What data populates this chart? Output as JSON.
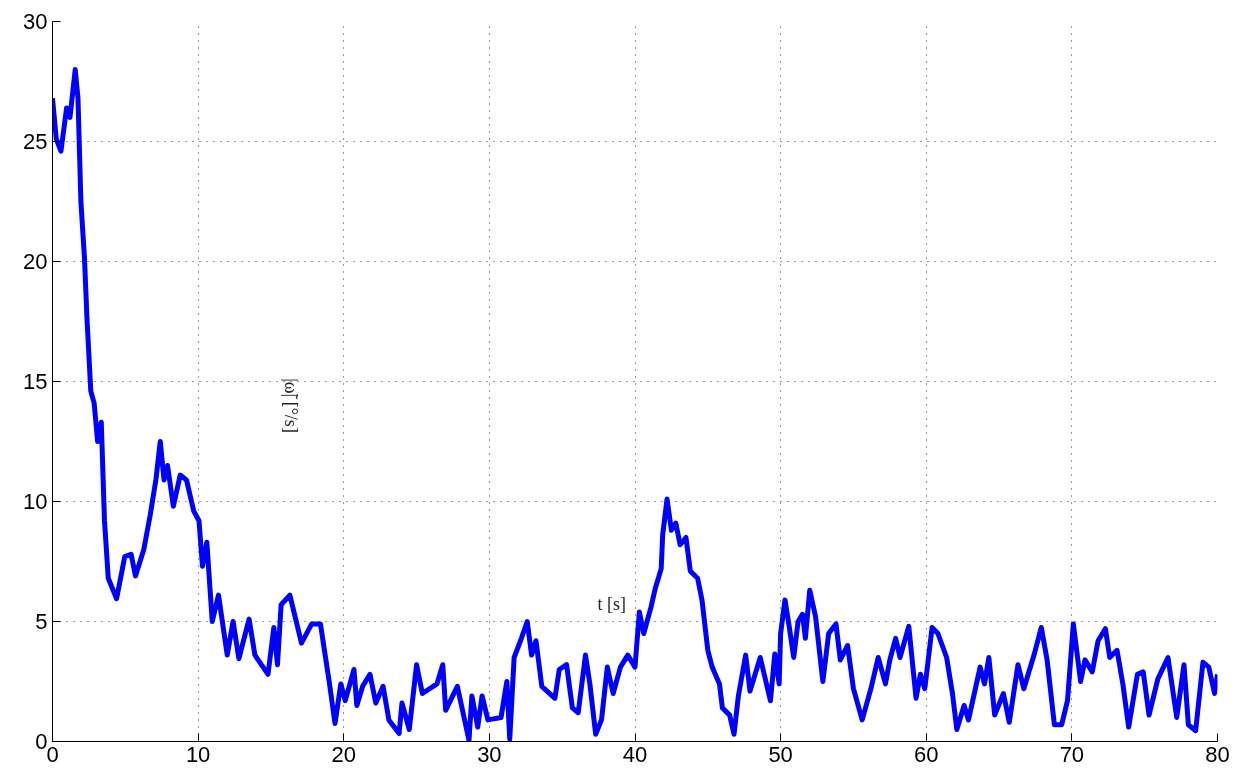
{
  "chart_data": {
    "type": "line",
    "xlabel": "t [s]",
    "ylabel": "|ω̃| [°/s]",
    "x": [
      0,
      0.26,
      0.58,
      0.97,
      1.2,
      1.56,
      1.75,
      1.95,
      2.2,
      2.37,
      2.63,
      2.86,
      3.1,
      3.35,
      3.57,
      3.83,
      4.4,
      4.96,
      5.4,
      5.7,
      6.27,
      6.7,
      7.1,
      7.4,
      7.66,
      7.9,
      8.3,
      8.77,
      9.2,
      9.7,
      10.06,
      10.3,
      10.6,
      10.97,
      11.4,
      12.0,
      12.4,
      12.8,
      13.5,
      13.9,
      14.8,
      15.2,
      15.45,
      15.7,
      16.3,
      17.1,
      17.8,
      18.4,
      18.8,
      19.0,
      19.4,
      19.8,
      20.1,
      20.7,
      20.9,
      21.3,
      21.8,
      22.2,
      22.7,
      23.1,
      23.8,
      24.0,
      24.5,
      25.0,
      25.4,
      26.4,
      26.8,
      27.0,
      27.8,
      28.6,
      28.8,
      29.2,
      29.5,
      29.9,
      30.8,
      31.2,
      31.4,
      31.7,
      32.2,
      32.6,
      32.9,
      33.2,
      33.6,
      34.5,
      34.8,
      35.3,
      35.7,
      36.1,
      36.6,
      36.9,
      37.3,
      37.7,
      38.1,
      38.5,
      39.0,
      39.5,
      40.0,
      40.3,
      40.6,
      41.1,
      41.4,
      41.8,
      41.9,
      42.2,
      42.5,
      42.8,
      43.1,
      43.5,
      43.8,
      44.3,
      44.6,
      45.0,
      45.3,
      45.8,
      46.0,
      46.5,
      46.8,
      47.1,
      47.6,
      47.9,
      48.6,
      49.3,
      49.6,
      49.9,
      50.0,
      50.3,
      50.6,
      50.9,
      51.2,
      51.5,
      51.7,
      52.0,
      52.4,
      52.9,
      53.3,
      53.8,
      54.1,
      54.6,
      55.0,
      55.6,
      56.2,
      56.7,
      57.2,
      57.5,
      57.9,
      58.2,
      58.8,
      59.3,
      59.6,
      59.9,
      60.4,
      60.8,
      61.4,
      61.8,
      62.1,
      62.6,
      62.9,
      63.7,
      64.0,
      64.3,
      64.7,
      65.3,
      65.7,
      66.3,
      66.7,
      67.4,
      67.9,
      68.3,
      68.8,
      69.3,
      69.7,
      70.1,
      70.6,
      70.9,
      71.4,
      71.8,
      72.3,
      72.6,
      73.1,
      73.5,
      73.9,
      74.5,
      74.9,
      75.3,
      75.9,
      76.6,
      77.2,
      77.7,
      78.0,
      78.5,
      79.0,
      79.4,
      79.8,
      80.0
    ],
    "series": [
      {
        "color": "#0000ff",
        "values": [
          26.8,
          25.1,
          24.6,
          26.4,
          26.0,
          28.0,
          26.8,
          22.5,
          20.1,
          17.6,
          14.6,
          14.1,
          12.5,
          13.3,
          9.2,
          6.8,
          5.95,
          7.7,
          7.8,
          6.9,
          8.0,
          9.4,
          10.9,
          12.5,
          10.9,
          11.5,
          9.8,
          11.1,
          10.9,
          9.6,
          9.2,
          7.3,
          8.3,
          5.0,
          6.1,
          3.6,
          5.0,
          3.45,
          5.1,
          3.6,
          2.8,
          4.75,
          3.2,
          5.7,
          6.1,
          4.1,
          4.9,
          4.9,
          3.3,
          2.5,
          0.75,
          2.4,
          1.7,
          3.0,
          1.5,
          2.3,
          2.8,
          1.6,
          2.3,
          0.9,
          0.33,
          1.6,
          0.5,
          3.2,
          2.0,
          2.4,
          3.2,
          1.3,
          2.3,
          0.05,
          1.9,
          0.6,
          1.9,
          0.9,
          1.0,
          2.5,
          0.1,
          3.5,
          4.3,
          5.0,
          3.6,
          4.2,
          2.3,
          1.8,
          3.0,
          3.2,
          1.4,
          1.2,
          3.6,
          2.4,
          0.3,
          0.9,
          3.1,
          2.0,
          3.1,
          3.6,
          3.1,
          5.4,
          4.5,
          5.6,
          6.4,
          7.2,
          8.6,
          10.1,
          8.8,
          9.1,
          8.2,
          8.5,
          7.1,
          6.8,
          5.9,
          3.8,
          3.1,
          2.4,
          1.4,
          1.1,
          0.3,
          1.9,
          3.6,
          2.1,
          3.5,
          1.7,
          3.65,
          2.4,
          4.5,
          5.9,
          4.75,
          3.5,
          5.0,
          5.3,
          4.3,
          6.3,
          5.2,
          2.5,
          4.5,
          4.9,
          3.4,
          4.0,
          2.2,
          0.9,
          2.2,
          3.5,
          2.4,
          3.4,
          4.3,
          3.5,
          4.8,
          1.8,
          2.8,
          2.2,
          4.75,
          4.5,
          3.5,
          2.0,
          0.5,
          1.5,
          0.9,
          3.1,
          2.4,
          3.5,
          1.1,
          2.0,
          0.8,
          3.2,
          2.2,
          3.6,
          4.75,
          3.4,
          0.7,
          0.7,
          1.7,
          4.9,
          2.5,
          3.4,
          2.9,
          4.2,
          4.7,
          3.5,
          3.8,
          2.4,
          0.6,
          2.8,
          2.9,
          1.1,
          2.6,
          3.5,
          1.0,
          3.2,
          0.7,
          0.45,
          3.3,
          3.1,
          2.0,
          2.8
        ]
      }
    ],
    "xlim": [
      0,
      80
    ],
    "ylim": [
      0,
      30
    ],
    "xticks": [
      0,
      10,
      20,
      30,
      40,
      50,
      60,
      70,
      80
    ],
    "yticks": [
      0,
      5,
      10,
      15,
      20,
      25,
      30
    ],
    "grid": true,
    "marker": "none",
    "line_style": "solid"
  }
}
